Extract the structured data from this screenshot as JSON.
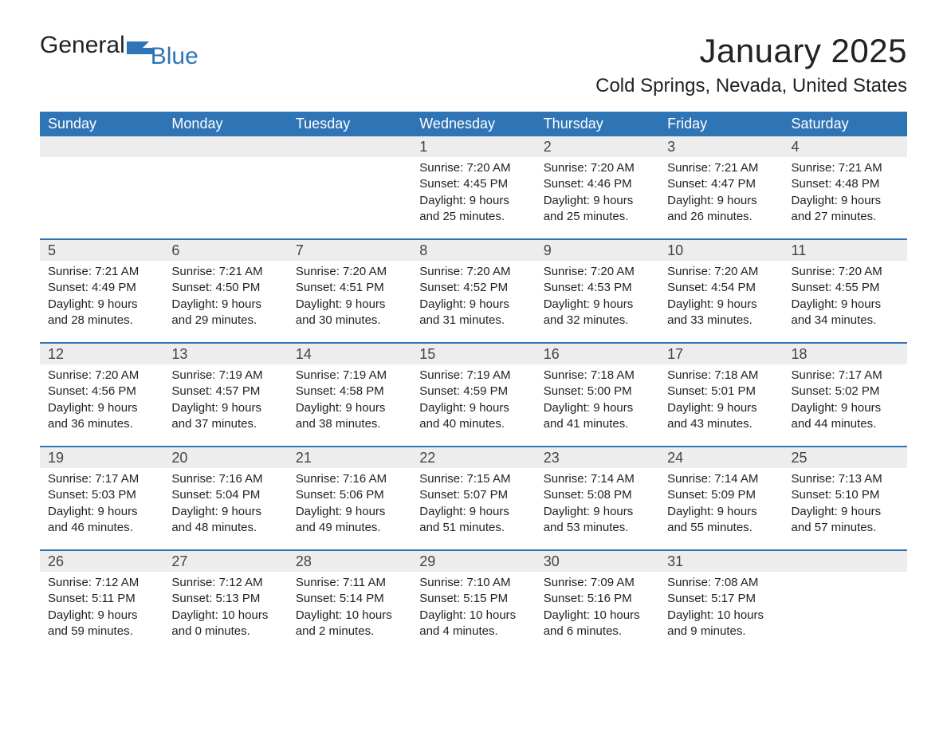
{
  "logo": {
    "text1": "General",
    "text2": "Blue"
  },
  "title": "January 2025",
  "location": "Cold Springs, Nevada, United States",
  "colors": {
    "header_bg": "#2f74b5",
    "header_text": "#ffffff",
    "strip_bg": "#ededed",
    "rule": "#2f74b5",
    "body_text": "#222222",
    "page_bg": "#ffffff"
  },
  "fonts": {
    "month_title_pt": 42,
    "location_pt": 24,
    "dayhead_pt": 18,
    "daynum_pt": 18,
    "body_pt": 15
  },
  "day_names": [
    "Sunday",
    "Monday",
    "Tuesday",
    "Wednesday",
    "Thursday",
    "Friday",
    "Saturday"
  ],
  "weeks": [
    [
      null,
      null,
      null,
      {
        "n": "1",
        "sr": "7:20 AM",
        "ss": "4:45 PM",
        "dl": "9 hours and 25 minutes."
      },
      {
        "n": "2",
        "sr": "7:20 AM",
        "ss": "4:46 PM",
        "dl": "9 hours and 25 minutes."
      },
      {
        "n": "3",
        "sr": "7:21 AM",
        "ss": "4:47 PM",
        "dl": "9 hours and 26 minutes."
      },
      {
        "n": "4",
        "sr": "7:21 AM",
        "ss": "4:48 PM",
        "dl": "9 hours and 27 minutes."
      }
    ],
    [
      {
        "n": "5",
        "sr": "7:21 AM",
        "ss": "4:49 PM",
        "dl": "9 hours and 28 minutes."
      },
      {
        "n": "6",
        "sr": "7:21 AM",
        "ss": "4:50 PM",
        "dl": "9 hours and 29 minutes."
      },
      {
        "n": "7",
        "sr": "7:20 AM",
        "ss": "4:51 PM",
        "dl": "9 hours and 30 minutes."
      },
      {
        "n": "8",
        "sr": "7:20 AM",
        "ss": "4:52 PM",
        "dl": "9 hours and 31 minutes."
      },
      {
        "n": "9",
        "sr": "7:20 AM",
        "ss": "4:53 PM",
        "dl": "9 hours and 32 minutes."
      },
      {
        "n": "10",
        "sr": "7:20 AM",
        "ss": "4:54 PM",
        "dl": "9 hours and 33 minutes."
      },
      {
        "n": "11",
        "sr": "7:20 AM",
        "ss": "4:55 PM",
        "dl": "9 hours and 34 minutes."
      }
    ],
    [
      {
        "n": "12",
        "sr": "7:20 AM",
        "ss": "4:56 PM",
        "dl": "9 hours and 36 minutes."
      },
      {
        "n": "13",
        "sr": "7:19 AM",
        "ss": "4:57 PM",
        "dl": "9 hours and 37 minutes."
      },
      {
        "n": "14",
        "sr": "7:19 AM",
        "ss": "4:58 PM",
        "dl": "9 hours and 38 minutes."
      },
      {
        "n": "15",
        "sr": "7:19 AM",
        "ss": "4:59 PM",
        "dl": "9 hours and 40 minutes."
      },
      {
        "n": "16",
        "sr": "7:18 AM",
        "ss": "5:00 PM",
        "dl": "9 hours and 41 minutes."
      },
      {
        "n": "17",
        "sr": "7:18 AM",
        "ss": "5:01 PM",
        "dl": "9 hours and 43 minutes."
      },
      {
        "n": "18",
        "sr": "7:17 AM",
        "ss": "5:02 PM",
        "dl": "9 hours and 44 minutes."
      }
    ],
    [
      {
        "n": "19",
        "sr": "7:17 AM",
        "ss": "5:03 PM",
        "dl": "9 hours and 46 minutes."
      },
      {
        "n": "20",
        "sr": "7:16 AM",
        "ss": "5:04 PM",
        "dl": "9 hours and 48 minutes."
      },
      {
        "n": "21",
        "sr": "7:16 AM",
        "ss": "5:06 PM",
        "dl": "9 hours and 49 minutes."
      },
      {
        "n": "22",
        "sr": "7:15 AM",
        "ss": "5:07 PM",
        "dl": "9 hours and 51 minutes."
      },
      {
        "n": "23",
        "sr": "7:14 AM",
        "ss": "5:08 PM",
        "dl": "9 hours and 53 minutes."
      },
      {
        "n": "24",
        "sr": "7:14 AM",
        "ss": "5:09 PM",
        "dl": "9 hours and 55 minutes."
      },
      {
        "n": "25",
        "sr": "7:13 AM",
        "ss": "5:10 PM",
        "dl": "9 hours and 57 minutes."
      }
    ],
    [
      {
        "n": "26",
        "sr": "7:12 AM",
        "ss": "5:11 PM",
        "dl": "9 hours and 59 minutes."
      },
      {
        "n": "27",
        "sr": "7:12 AM",
        "ss": "5:13 PM",
        "dl": "10 hours and 0 minutes."
      },
      {
        "n": "28",
        "sr": "7:11 AM",
        "ss": "5:14 PM",
        "dl": "10 hours and 2 minutes."
      },
      {
        "n": "29",
        "sr": "7:10 AM",
        "ss": "5:15 PM",
        "dl": "10 hours and 4 minutes."
      },
      {
        "n": "30",
        "sr": "7:09 AM",
        "ss": "5:16 PM",
        "dl": "10 hours and 6 minutes."
      },
      {
        "n": "31",
        "sr": "7:08 AM",
        "ss": "5:17 PM",
        "dl": "10 hours and 9 minutes."
      },
      null
    ]
  ],
  "labels": {
    "sunrise": "Sunrise: ",
    "sunset": "Sunset: ",
    "daylight": "Daylight: "
  }
}
